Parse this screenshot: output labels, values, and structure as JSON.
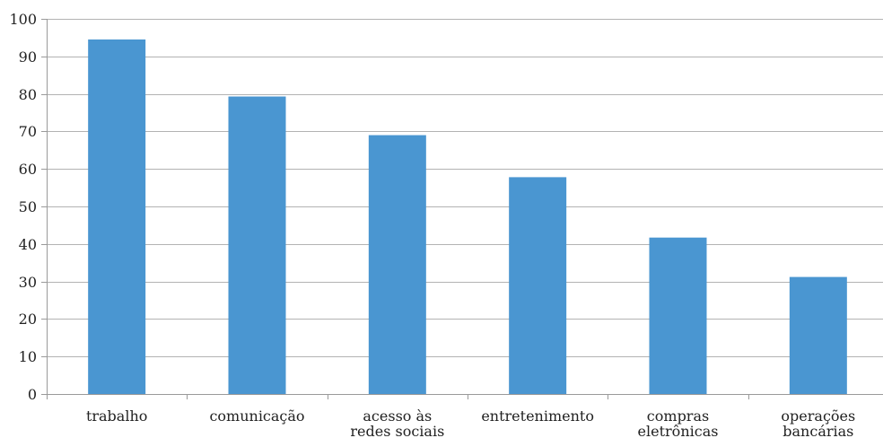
{
  "chart_data": {
    "type": "bar",
    "categories": [
      [
        "trabalho"
      ],
      [
        "comunicação"
      ],
      [
        "acesso às",
        "redes sociais"
      ],
      [
        "entretenimento"
      ],
      [
        "compras",
        "eletrônicas"
      ],
      [
        "operações",
        "bancárias"
      ]
    ],
    "values": [
      94.5,
      79.3,
      69,
      57.8,
      41.7,
      31.2
    ],
    "ylim": [
      0,
      100
    ],
    "yticks": [
      0,
      10,
      20,
      30,
      40,
      50,
      60,
      70,
      80,
      90,
      100
    ],
    "ytick_labels": [
      "0",
      "10",
      "20",
      "30",
      "40",
      "50",
      "60",
      "70",
      "80",
      "90",
      "100"
    ],
    "grid": true,
    "bar_color": "#4a96d1",
    "grid_color": "#b3b3b3",
    "axis_color": "#9a9a9a"
  }
}
